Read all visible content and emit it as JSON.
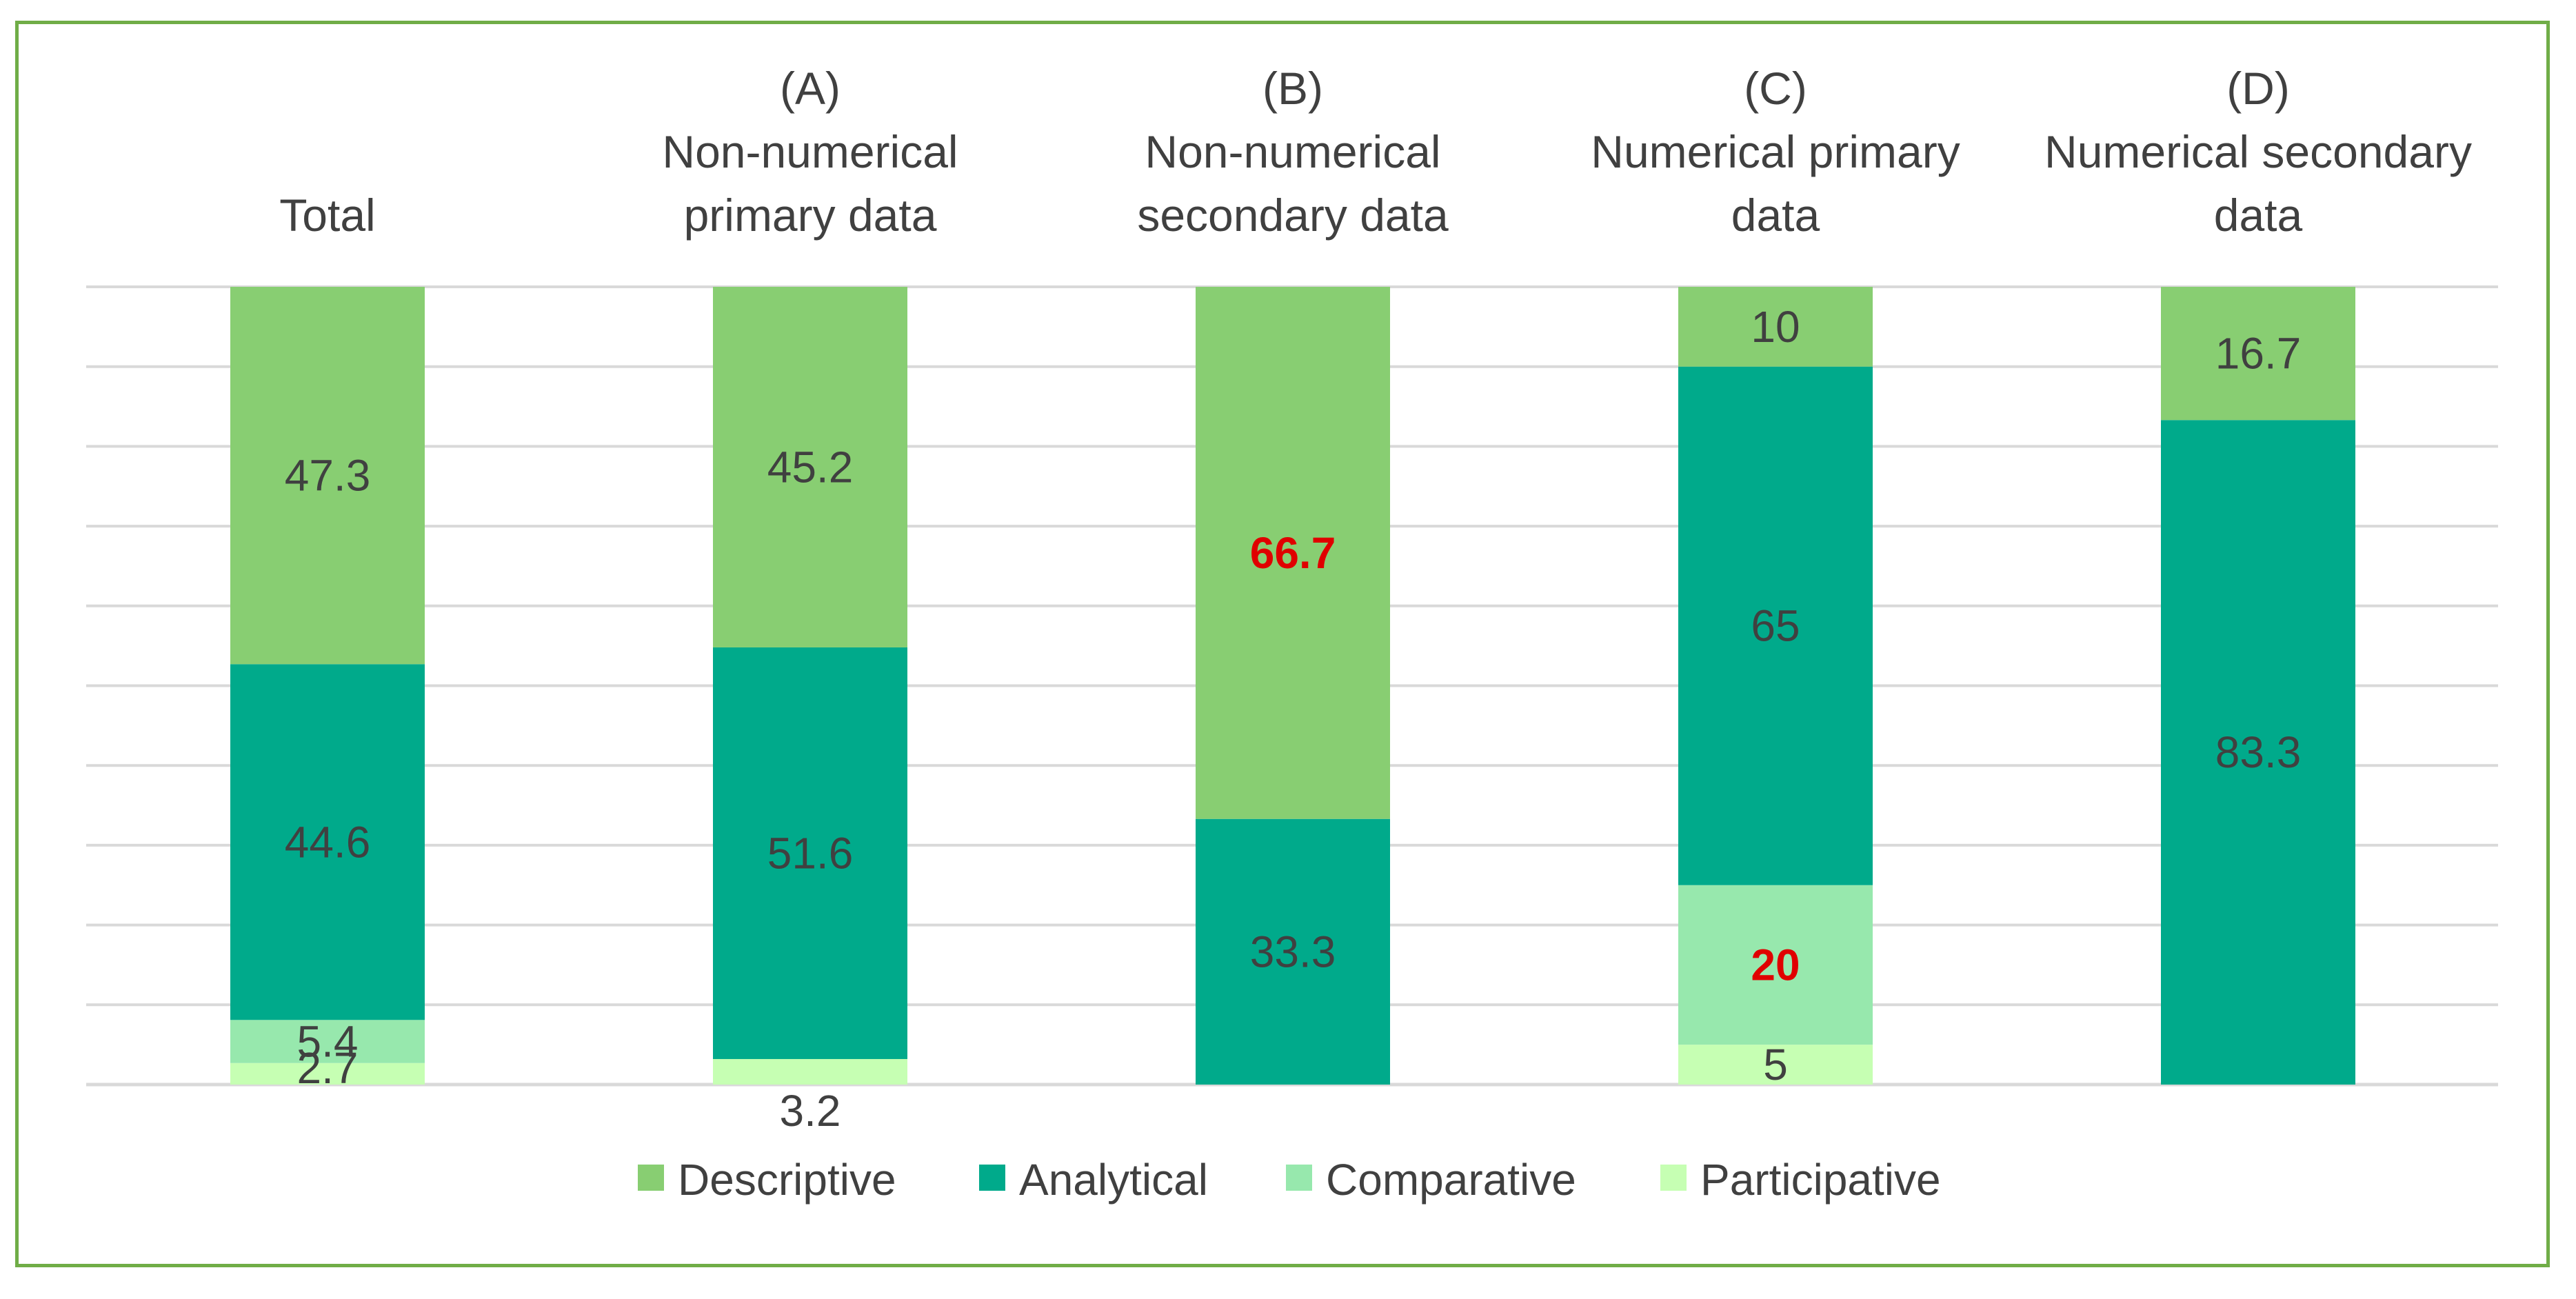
{
  "chart_data": {
    "type": "bar",
    "stacked": true,
    "categories": [
      [
        "Total"
      ],
      [
        "(A)",
        "Non-numerical",
        "primary data"
      ],
      [
        "(B)",
        "Non-numerical",
        "secondary data"
      ],
      [
        "(C)",
        "Numerical primary",
        "data"
      ],
      [
        "(D)",
        "Numerical secondary",
        "data"
      ]
    ],
    "series": [
      {
        "name": "Participative",
        "color": "#C6FFB3",
        "values": [
          2.7,
          3.2,
          0,
          5,
          0
        ]
      },
      {
        "name": "Comparative",
        "color": "#97E8AD",
        "values": [
          5.4,
          0,
          0,
          20,
          0
        ]
      },
      {
        "name": "Analytical",
        "color": "#00AA8B",
        "values": [
          44.6,
          51.6,
          33.3,
          65,
          83.3
        ]
      },
      {
        "name": "Descriptive",
        "color": "#88CE72",
        "values": [
          47.3,
          45.2,
          66.7,
          10,
          16.7
        ]
      }
    ],
    "data_labels": [
      [
        "2.7",
        "3.2",
        "",
        "5",
        ""
      ],
      [
        "5.4",
        "",
        "",
        "20",
        ""
      ],
      [
        "44.6",
        "51.6",
        "33.3",
        "65",
        "83.3"
      ],
      [
        "47.3",
        "45.2",
        "66.7",
        "10",
        "16.7"
      ]
    ],
    "highlighted_labels": [
      {
        "series": 1,
        "category": 3,
        "color": "#E00000"
      },
      {
        "series": 3,
        "category": 2,
        "color": "#E00000"
      }
    ],
    "legend_order": [
      "Descriptive",
      "Analytical",
      "Comparative",
      "Participative"
    ],
    "ylim": [
      0,
      100
    ],
    "gridlines": 10,
    "grid": true,
    "legend_position": "bottom",
    "frame_color": "#70AD47",
    "gridline_color": "#D9D9D9"
  }
}
